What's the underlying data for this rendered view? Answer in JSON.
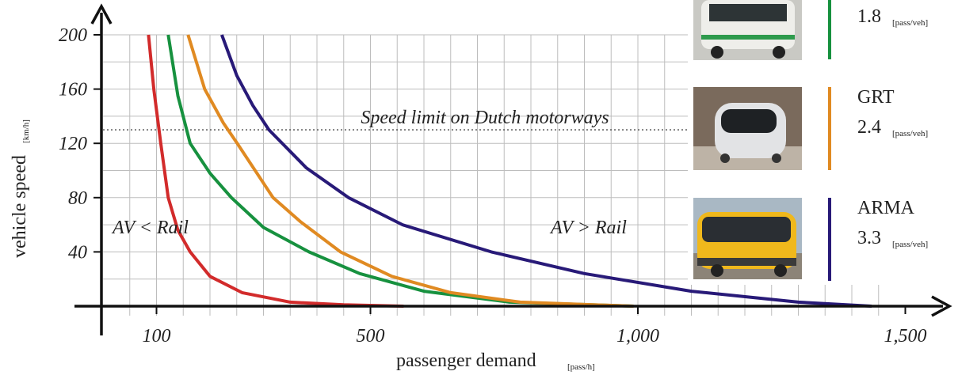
{
  "chart_data": {
    "type": "line",
    "xlabel": "passenger demand",
    "xlabel_unit": "[pass/h]",
    "ylabel": "vehicle speed",
    "ylabel_unit": "[km/h]",
    "xlim": [
      0,
      1580
    ],
    "ylim": [
      0,
      200
    ],
    "xticks": [
      100,
      500,
      {
        "value": 1000,
        "label": "1,000"
      },
      {
        "value": 1500,
        "label": "1,500"
      }
    ],
    "xminorticks": [
      50,
      100,
      150,
      200,
      250,
      300,
      350,
      400,
      450,
      500,
      550,
      600,
      650,
      700,
      750,
      800,
      850,
      900,
      950,
      1000,
      1050,
      1100,
      1150,
      1200,
      1250,
      1300,
      1350,
      1400,
      1450
    ],
    "yticks": [
      40,
      80,
      120,
      160,
      200
    ],
    "yminorticks": [
      20,
      60,
      100,
      140,
      180
    ],
    "grid": true,
    "reference_line": {
      "value": 130,
      "label": "Speed limit on Dutch motorways"
    },
    "annotations": [
      "AV < Rail",
      "AV > Rail"
    ],
    "occupancy_unit": "[pass/veh]",
    "series": [
      {
        "color": "#d22b2b",
        "x": [
          85,
          95,
          108,
          122,
          140,
          163,
          200,
          260,
          350,
          450,
          562
        ],
        "values": [
          200,
          160,
          120,
          80,
          56,
          40,
          22,
          10,
          3,
          1,
          0
        ]
      },
      {
        "color": "#17913f",
        "occupancy": 1.8,
        "x": [
          122,
          140,
          163,
          200,
          240,
          300,
          385,
          480,
          600,
          760,
          992
        ],
        "values": [
          200,
          155,
          120,
          98,
          80,
          58,
          40,
          24,
          11,
          3,
          0
        ]
      },
      {
        "name": "GRT",
        "color": "#e08a22",
        "occupancy": 2.4,
        "x": [
          159,
          190,
          225,
          251,
          318,
          370,
          444,
          540,
          650,
          780,
          992
        ],
        "values": [
          200,
          160,
          135,
          120,
          80,
          62,
          40,
          22,
          10,
          3,
          0
        ]
      },
      {
        "name": "ARMA",
        "color": "#281a78",
        "occupancy": 3.3,
        "x": [
          222,
          250,
          280,
          310,
          380,
          459,
          560,
          726,
          900,
          1100,
          1300,
          1437
        ],
        "values": [
          200,
          170,
          148,
          130,
          102,
          80,
          60,
          40,
          24,
          11,
          3,
          0
        ]
      }
    ]
  }
}
